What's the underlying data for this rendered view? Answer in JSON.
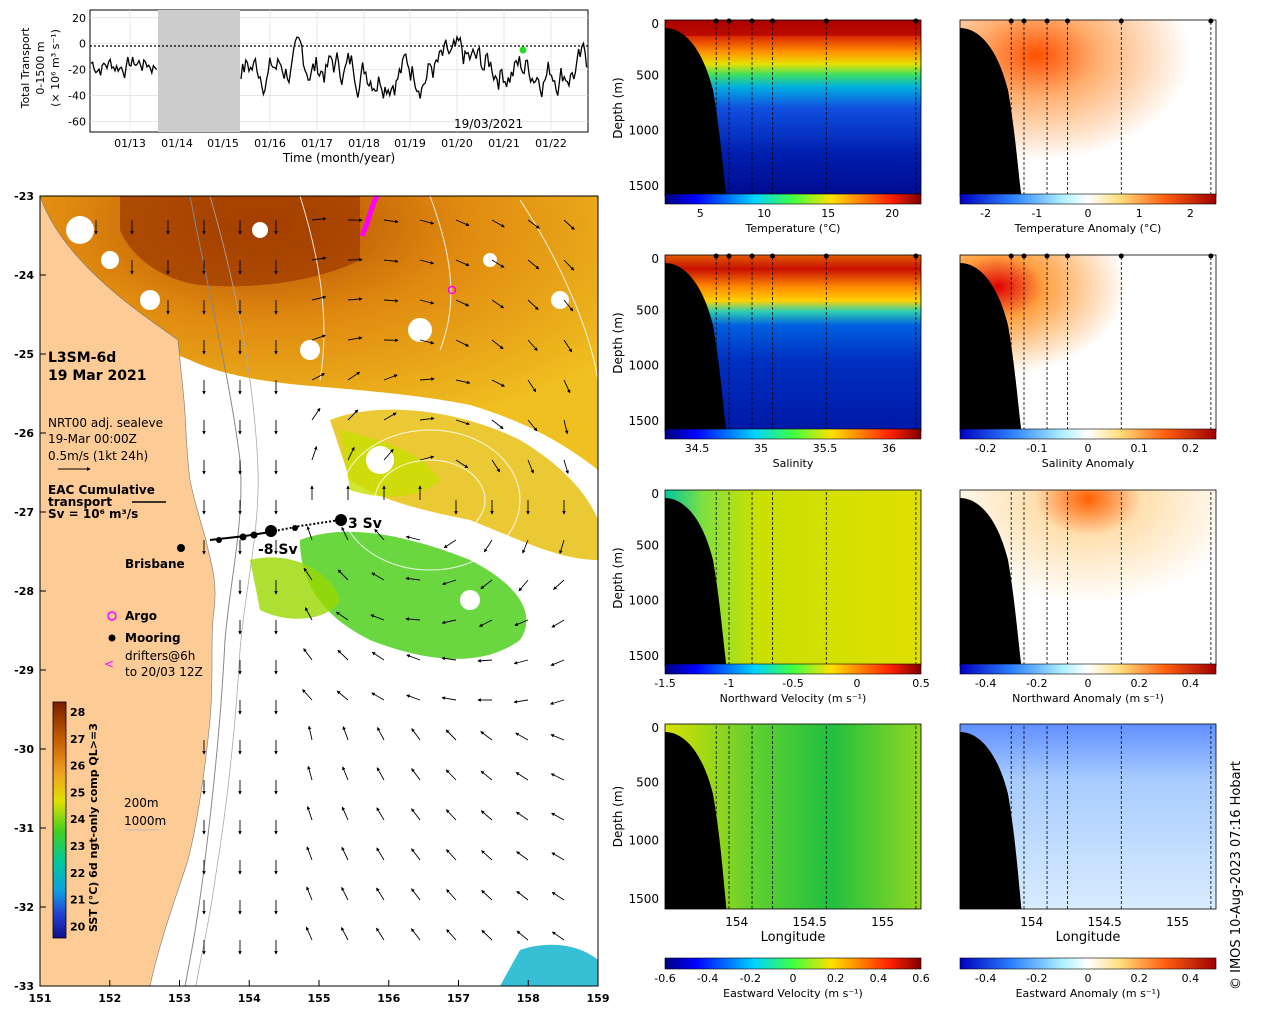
{
  "timeseries": {
    "ylabel_lines": [
      "Total Transport",
      "0-1500 m",
      "(× 10⁶ m³ s⁻¹)"
    ],
    "xlabel": "Time (month/year)",
    "xticks": [
      "01/13",
      "01/14",
      "01/15",
      "01/16",
      "01/17",
      "01/18",
      "01/19",
      "01/20",
      "01/21",
      "01/22"
    ],
    "yticks": [
      "20",
      "0",
      "-20",
      "-40",
      "-60"
    ],
    "ylim": [
      -68,
      26
    ],
    "date_label": "19/03/2021",
    "gap_x_range": [
      "01/14 approx",
      "01/15 approx"
    ]
  },
  "map": {
    "title_line1": "L3SM-6d",
    "title_line2": "19 Mar 2021",
    "vel_line1": "NRT00 adj. sealeve",
    "vel_line2": "19-Mar 00:00Z",
    "vel_line3": "0.5m/s (1kt 24h)",
    "eac_line1": "EAC Cumulative",
    "eac_line2": "transport",
    "eac_line3": "Sv = 10⁶ m³/s",
    "city": "Brisbane",
    "transport_label_east": "3 Sv",
    "transport_label_west": "-8 Sv",
    "legend": {
      "argo": "Argo",
      "mooring": "Mooring",
      "drifters_line1": "drifters@6h",
      "drifters_line2": "to 20/03 12Z"
    },
    "bathy_labels": [
      "200m",
      "1000m"
    ],
    "colorbar_label": "SST (°C) 6d ngt-only comp QL>=3",
    "colorbar_ticks": [
      "28",
      "27",
      "26",
      "25",
      "24",
      "23",
      "22",
      "21",
      "20"
    ],
    "lon_ticks": [
      "151",
      "152",
      "153",
      "154",
      "155",
      "156",
      "157",
      "158",
      "159"
    ],
    "lat_ticks": [
      "-23",
      "-24",
      "-25",
      "-26",
      "-27",
      "-28",
      "-29",
      "-30",
      "-31",
      "-32",
      "-33"
    ]
  },
  "sections": {
    "depth_label": "Depth (m)",
    "depth_ticks": [
      "0",
      "500",
      "1000",
      "1500"
    ],
    "longitude_label": "Longitude",
    "lon_ticks": [
      "154",
      "154.5",
      "155"
    ],
    "rows": [
      {
        "left_label": "Temperature (°C)",
        "left_ticks": [
          "5",
          "10",
          "15",
          "20"
        ],
        "right_label": "Temperature Anomaly (°C)",
        "right_ticks": [
          "-2",
          "-1",
          "0",
          "1",
          "2"
        ]
      },
      {
        "left_label": "Salinity",
        "left_ticks": [
          "34.5",
          "35",
          "35.5",
          "36"
        ],
        "right_label": "Salinity Anomaly",
        "right_ticks": [
          "-0.2",
          "-0.1",
          "0",
          "0.1",
          "0.2"
        ]
      },
      {
        "left_label": "Northward Velocity (m s⁻¹)",
        "left_ticks": [
          "-1.5",
          "-1",
          "-0.5",
          "0",
          "0.5"
        ],
        "right_label": "Northward Anomaly (m s⁻¹)",
        "right_ticks": [
          "-0.4",
          "-0.2",
          "0",
          "0.2",
          "0.4"
        ]
      },
      {
        "left_label": "Eastward Velocity (m s⁻¹)",
        "left_ticks": [
          "-0.6",
          "-0.4",
          "-0.2",
          "0",
          "0.2",
          "0.4",
          "0.6"
        ],
        "right_label": "Eastward Anomaly (m s⁻¹)",
        "right_ticks": [
          "-0.4",
          "-0.2",
          "0",
          "0.2",
          "0.4"
        ]
      }
    ]
  },
  "credit": "© IMOS 10-Aug-2023 07:16 Hobart",
  "colors": {
    "land": "#fccb96",
    "gap": "#cccccc",
    "argo": "#ff00ff",
    "current_marker": "#22dd22"
  },
  "chart_data": {
    "type": "line",
    "title": "",
    "xlabel": "Time (month/year)",
    "ylabel": "Total Transport 0-1500 m (× 10⁶ m³ s⁻¹)",
    "ylim": [
      -68,
      26
    ],
    "note": "Daily EAC total transport time series; values approximate, data gap between 01/14 and 01/15"
  }
}
